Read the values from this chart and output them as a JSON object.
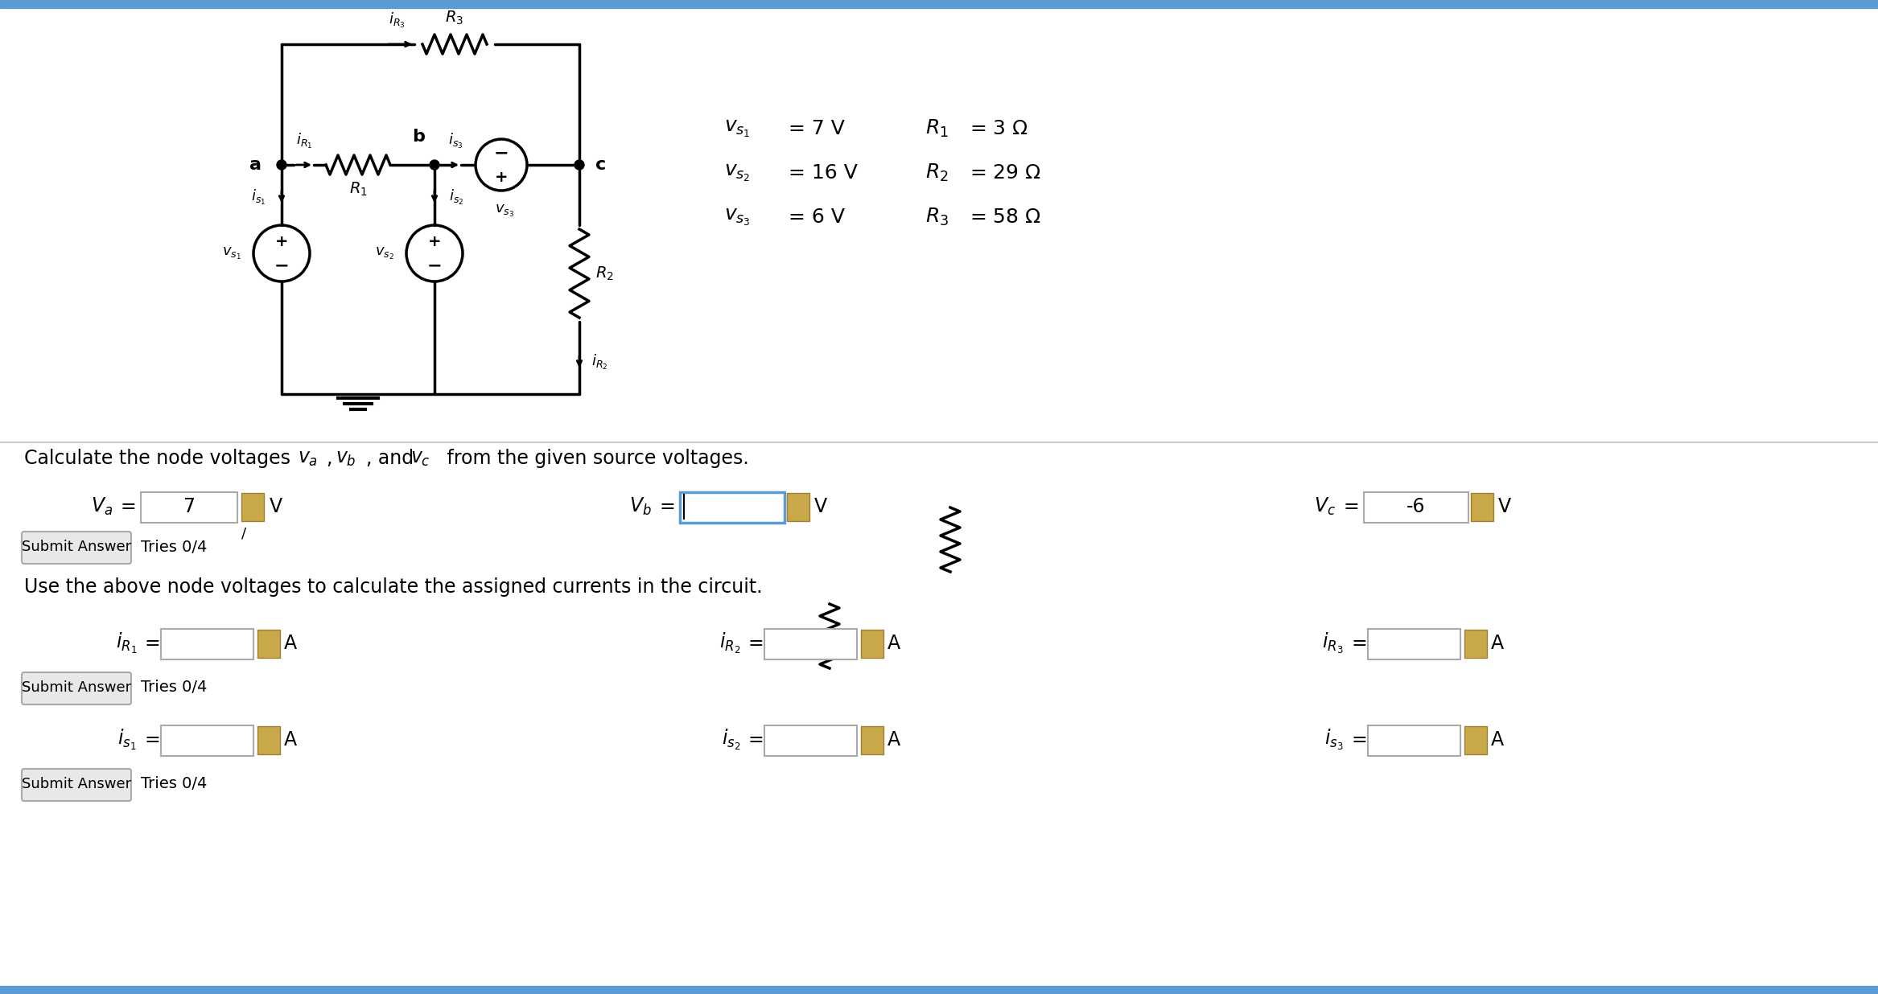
{
  "bg_color": "#f0f0f0",
  "circuit_bg": "#ffffff",
  "title_bar_color": "#4a90d9",
  "vs1": "7 V",
  "vs2": "16 V",
  "vs3": "6 V",
  "R1": "3 Ω",
  "R2": "29 Ω",
  "R3": "58 Ω",
  "text_calc": "Calculate the node voltages v",
  "text_calc2": ", v",
  "text_calc3": ", and v",
  "text_calc4": " from the given source voltages.",
  "text_use": "Use the above node voltages to calculate the assigned currents in the circuit.",
  "va_val": "7",
  "vb_val": "",
  "vc_val": "-6",
  "submit_text": "Submit Answer",
  "tries_text": "Tries 0/4"
}
